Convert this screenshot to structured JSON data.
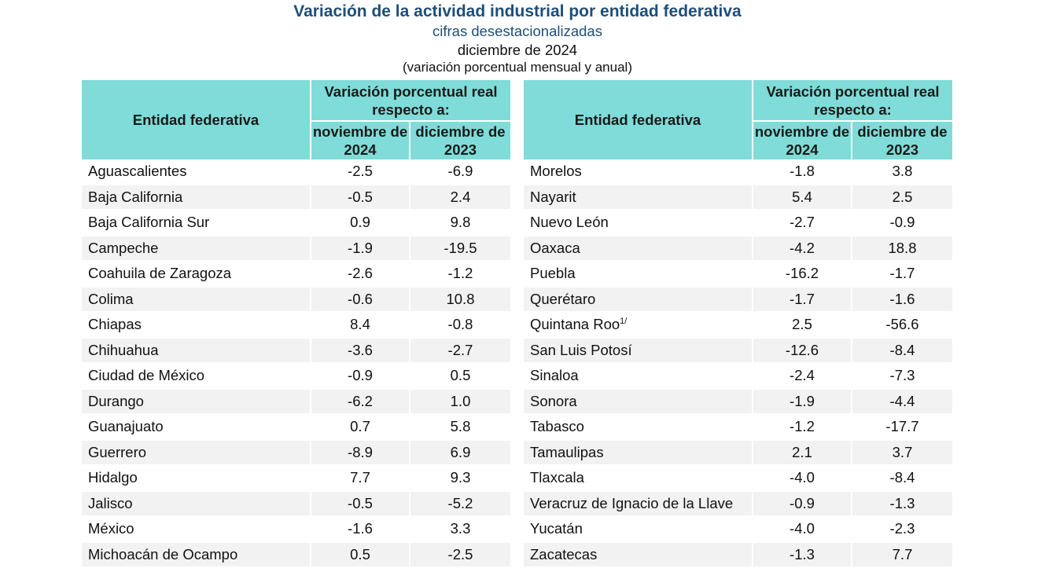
{
  "header": {
    "title": "Variación de la actividad industrial por entidad federativa",
    "subtitle": "cifras desestacionalizadas",
    "date": "diciembre de 2024",
    "note": "(variación porcentual mensual y anual)"
  },
  "colors": {
    "title": "#1f4e79",
    "header_bg": "#7fdcd8",
    "alt_row": "#f2f2f2"
  },
  "table_left": {
    "col_entity": "Entidad federativa",
    "col_group": "Variación porcentual real respecto a:",
    "col_nov": "noviembre de 2024",
    "col_dec": "diciembre de 2023",
    "rows": [
      {
        "name": "Aguascalientes",
        "nov": "-2.5",
        "dec": "-6.9"
      },
      {
        "name": "Baja California",
        "nov": "-0.5",
        "dec": "2.4"
      },
      {
        "name": "Baja California Sur",
        "nov": "0.9",
        "dec": "9.8"
      },
      {
        "name": "Campeche",
        "nov": "-1.9",
        "dec": "-19.5"
      },
      {
        "name": "Coahuila de Zaragoza",
        "nov": "-2.6",
        "dec": "-1.2"
      },
      {
        "name": "Colima",
        "nov": "-0.6",
        "dec": "10.8"
      },
      {
        "name": "Chiapas",
        "nov": "8.4",
        "dec": "-0.8"
      },
      {
        "name": "Chihuahua",
        "nov": "-3.6",
        "dec": "-2.7"
      },
      {
        "name": "Ciudad de México",
        "nov": "-0.9",
        "dec": "0.5"
      },
      {
        "name": "Durango",
        "nov": "-6.2",
        "dec": "1.0"
      },
      {
        "name": "Guanajuato",
        "nov": "0.7",
        "dec": "5.8"
      },
      {
        "name": "Guerrero",
        "nov": "-8.9",
        "dec": "6.9"
      },
      {
        "name": "Hidalgo",
        "nov": "7.7",
        "dec": "9.3"
      },
      {
        "name": "Jalisco",
        "nov": "-0.5",
        "dec": "-5.2"
      },
      {
        "name": "México",
        "nov": "-1.6",
        "dec": "3.3"
      },
      {
        "name": "Michoacán de Ocampo",
        "nov": "0.5",
        "dec": "-2.5"
      }
    ]
  },
  "table_right": {
    "col_entity": "Entidad federativa",
    "col_group": "Variación porcentual real respecto a:",
    "col_nov": "noviembre de 2024",
    "col_dec": "diciembre de 2023",
    "rows": [
      {
        "name": "Morelos",
        "nov": "-1.8",
        "dec": "3.8"
      },
      {
        "name": "Nayarit",
        "nov": "5.4",
        "dec": "2.5"
      },
      {
        "name": "Nuevo León",
        "nov": "-2.7",
        "dec": "-0.9"
      },
      {
        "name": "Oaxaca",
        "nov": "-4.2",
        "dec": "18.8"
      },
      {
        "name": "Puebla",
        "nov": "-16.2",
        "dec": "-1.7"
      },
      {
        "name": "Querétaro",
        "nov": "-1.7",
        "dec": "-1.6"
      },
      {
        "name": "Quintana Roo",
        "sup": "1/",
        "nov": "2.5",
        "dec": "-56.6"
      },
      {
        "name": "San Luis Potosí",
        "nov": "-12.6",
        "dec": "-8.4"
      },
      {
        "name": "Sinaloa",
        "nov": "-2.4",
        "dec": "-7.3"
      },
      {
        "name": "Sonora",
        "nov": "-1.9",
        "dec": "-4.4"
      },
      {
        "name": "Tabasco",
        "nov": "-1.2",
        "dec": "-17.7"
      },
      {
        "name": "Tamaulipas",
        "nov": "2.1",
        "dec": "3.7"
      },
      {
        "name": "Tlaxcala",
        "nov": "-4.0",
        "dec": "-8.4"
      },
      {
        "name": "Veracruz de Ignacio de la Llave",
        "nov": "-0.9",
        "dec": "-1.3"
      },
      {
        "name": "Yucatán",
        "nov": "-4.0",
        "dec": "-2.3"
      },
      {
        "name": "Zacatecas",
        "nov": "-1.3",
        "dec": "7.7"
      }
    ]
  }
}
